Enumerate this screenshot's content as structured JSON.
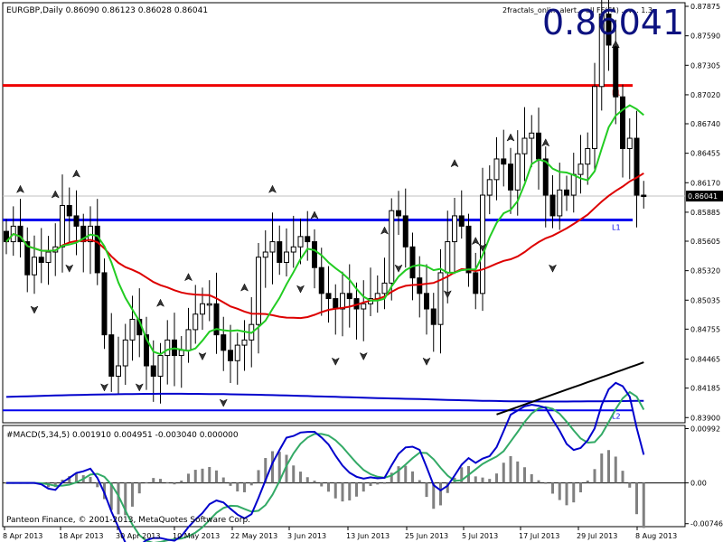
{
  "header": {
    "symbol_label": "EURGBP,Daily  0.86090 0.86123 0.86028 0.86041",
    "indicator_label": "2fractals_onli... alert... all FF(FA) ...v... 1.3",
    "big_price": "0.86041",
    "macd_label": "#MACD(5,34,5) 0.001910 0.004951 -0.003040 0.000000",
    "copyright": "Panteon Finance, © 2001-2013, MetaQuotes Software Corp."
  },
  "colors": {
    "grid": "#c0c0c0",
    "frame": "#000000",
    "candle": "#000000",
    "ma_fast": "#22cc22",
    "ma_slow": "#dd0000",
    "ma_long": "#0000cc",
    "ma_black": "#000000",
    "level_red": "#ee0000",
    "level_blue": "#0000ee",
    "level_label": "#cc0000",
    "macd_fast": "#0000cc",
    "macd_signal": "#33aa66",
    "histogram": "#808080",
    "big_price": "#0d1280",
    "current_price_box": "#000000"
  },
  "chart_data": {
    "type": "candlestick",
    "symbol": "EURGBP",
    "timeframe": "Daily",
    "ylim": [
      0.8385,
      0.8791
    ],
    "y_ticks": [
      "0.87875",
      "0.87590",
      "0.87305",
      "0.87020",
      "0.86740",
      "0.86455",
      "0.86170",
      "0.85885",
      "0.85605",
      "0.85320",
      "0.85035",
      "0.84755",
      "0.84465",
      "0.84185",
      "0.83900"
    ],
    "current_price": "0.86041",
    "x_labels": [
      "8 Apr 2013",
      "18 Apr 2013",
      "30 Apr 2013",
      "10 May 2013",
      "22 May 2013",
      "3 Jun 2013",
      "13 Jun 2013",
      "25 Jun 2013",
      "5 Jul 2013",
      "17 Jul 2013",
      "29 Jul 2013",
      "8 Aug 2013"
    ],
    "ohlc_close_approx": [
      0.856,
      0.8575,
      0.856,
      0.8528,
      0.8545,
      0.854,
      0.855,
      0.8555,
      0.8595,
      0.8585,
      0.8575,
      0.856,
      0.8575,
      0.853,
      0.847,
      0.843,
      0.844,
      0.8465,
      0.8485,
      0.847,
      0.844,
      0.843,
      0.845,
      0.8465,
      0.845,
      0.8455,
      0.8475,
      0.849,
      0.85,
      0.85,
      0.847,
      0.8455,
      0.8445,
      0.846,
      0.8465,
      0.848,
      0.8545,
      0.855,
      0.856,
      0.854,
      0.855,
      0.8555,
      0.8565,
      0.856,
      0.8535,
      0.851,
      0.8505,
      0.8495,
      0.851,
      0.8505,
      0.8495,
      0.85,
      0.8505,
      0.851,
      0.852,
      0.859,
      0.8585,
      0.8555,
      0.8525,
      0.851,
      0.8495,
      0.848,
      0.853,
      0.856,
      0.8585,
      0.8575,
      0.853,
      0.851,
      0.8605,
      0.862,
      0.864,
      0.8635,
      0.861,
      0.8645,
      0.866,
      0.8665,
      0.864,
      0.8605,
      0.8585,
      0.861,
      0.8605,
      0.8625,
      0.8635,
      0.865,
      0.871,
      0.878,
      0.875,
      0.87,
      0.865,
      0.866,
      0.8605,
      0.8604
    ],
    "levels": [
      {
        "name": "L1",
        "price": 0.8711,
        "color": "red"
      },
      {
        "name": "L1",
        "price": 0.8581,
        "color": "blue"
      },
      {
        "name": "L2",
        "price": 0.8397,
        "color": "blue"
      }
    ],
    "macd": {
      "params": "5,34,5",
      "values": [
        "0.001910",
        "0.004951",
        "-0.003040",
        "0.000000"
      ],
      "y_ticks": [
        "0.00992",
        "0.00",
        "-0.00746"
      ],
      "ylim": [
        -0.008,
        0.0105
      ]
    }
  }
}
